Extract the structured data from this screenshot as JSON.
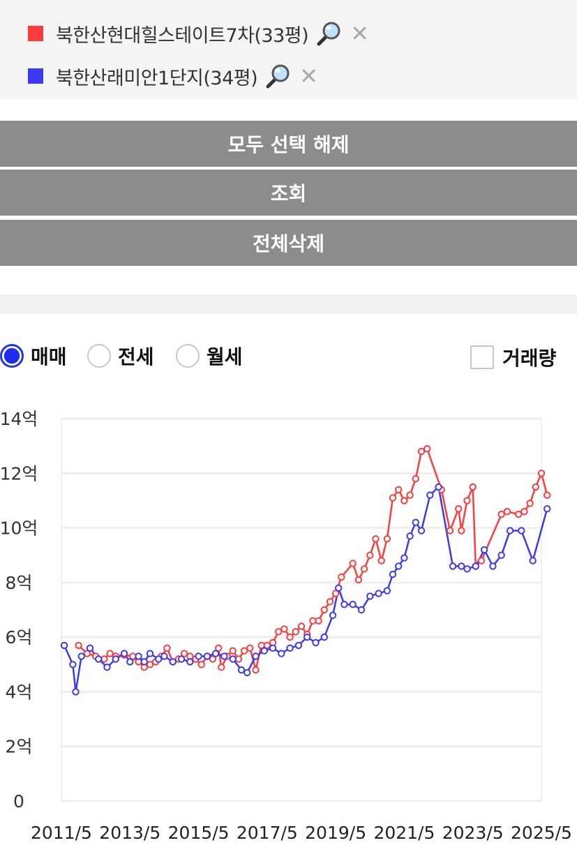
{
  "complexes": [
    {
      "name": "북한산현대힐스테이트7차(33평)",
      "color": "#ff3b3b",
      "icon": "magnifier-icon",
      "remove_icon": "close-icon"
    },
    {
      "name": "북한산래미안1단지(34평)",
      "color": "#3a3af5",
      "icon": "magnifier-icon",
      "remove_icon": "close-icon"
    }
  ],
  "buttons": {
    "deselect_all": "모두 선택 해제",
    "search": "조회",
    "delete_all": "전체삭제"
  },
  "trade_type": {
    "options": [
      "매매",
      "전세",
      "월세"
    ],
    "selected": "매매"
  },
  "volume_toggle": {
    "label": "거래량",
    "checked": false
  },
  "chart_data": {
    "type": "line",
    "x_type": "date",
    "yticks": [
      "0",
      "2억",
      "4억",
      "6억",
      "8억",
      "10억",
      "12억",
      "14억"
    ],
    "ylim": [
      0,
      14
    ],
    "y_unit": "억",
    "xticks": [
      "2011/5",
      "2013/5",
      "2015/5",
      "2017/5",
      "2019/5",
      "2021/5",
      "2023/5",
      "2025/5"
    ],
    "xlim": [
      "2011-05",
      "2025-05"
    ],
    "grid": true,
    "series": [
      {
        "name": "북한산현대힐스테이트7차(33평)",
        "color": "#ff3b3b",
        "points": [
          [
            "2011-11",
            5.7
          ],
          [
            "2012-02",
            5.4
          ],
          [
            "2012-05",
            5.3
          ],
          [
            "2012-08",
            5.2
          ],
          [
            "2012-10",
            5.4
          ],
          [
            "2012-12",
            5.3
          ],
          [
            "2013-03",
            5.35
          ],
          [
            "2013-06",
            5.3
          ],
          [
            "2013-08",
            5.1
          ],
          [
            "2013-10",
            4.9
          ],
          [
            "2013-12",
            5.0
          ],
          [
            "2014-02",
            5.1
          ],
          [
            "2014-04",
            5.3
          ],
          [
            "2014-06",
            5.6
          ],
          [
            "2014-08",
            5.1
          ],
          [
            "2014-10",
            5.2
          ],
          [
            "2014-12",
            5.4
          ],
          [
            "2015-02",
            5.3
          ],
          [
            "2015-04",
            5.2
          ],
          [
            "2015-06",
            5.0
          ],
          [
            "2015-08",
            5.3
          ],
          [
            "2015-10",
            5.2
          ],
          [
            "2015-12",
            5.6
          ],
          [
            "2016-01",
            4.9
          ],
          [
            "2016-03",
            5.3
          ],
          [
            "2016-05",
            5.5
          ],
          [
            "2016-07",
            5.2
          ],
          [
            "2016-09",
            5.5
          ],
          [
            "2016-11",
            5.6
          ],
          [
            "2017-01",
            4.8
          ],
          [
            "2017-03",
            5.7
          ],
          [
            "2017-05",
            5.7
          ],
          [
            "2017-07",
            5.8
          ],
          [
            "2017-09",
            6.2
          ],
          [
            "2017-11",
            6.3
          ],
          [
            "2018-01",
            6.0
          ],
          [
            "2018-03",
            6.2
          ],
          [
            "2018-05",
            6.4
          ],
          [
            "2018-07",
            6.1
          ],
          [
            "2018-09",
            6.6
          ],
          [
            "2018-11",
            6.6
          ],
          [
            "2019-01",
            7.0
          ],
          [
            "2019-03",
            7.3
          ],
          [
            "2019-05",
            7.6
          ],
          [
            "2019-07",
            8.2
          ],
          [
            "2019-11",
            8.7
          ],
          [
            "2020-01",
            8.1
          ],
          [
            "2020-03",
            8.5
          ],
          [
            "2020-05",
            9.0
          ],
          [
            "2020-07",
            9.6
          ],
          [
            "2020-09",
            8.8
          ],
          [
            "2020-11",
            9.6
          ],
          [
            "2021-01",
            11.1
          ],
          [
            "2021-03",
            11.4
          ],
          [
            "2021-05",
            11.0
          ],
          [
            "2021-07",
            11.2
          ],
          [
            "2021-09",
            11.8
          ],
          [
            "2021-11",
            12.8
          ],
          [
            "2022-01",
            12.9
          ],
          [
            "2022-06",
            11.4
          ],
          [
            "2022-09",
            9.9
          ],
          [
            "2022-12",
            10.7
          ],
          [
            "2023-01",
            9.9
          ],
          [
            "2023-03",
            11.0
          ],
          [
            "2023-05",
            11.5
          ],
          [
            "2023-06",
            8.6
          ],
          [
            "2023-08",
            8.8
          ],
          [
            "2024-03",
            10.5
          ],
          [
            "2024-05",
            10.6
          ],
          [
            "2024-09",
            10.5
          ],
          [
            "2024-11",
            10.6
          ],
          [
            "2025-01",
            10.9
          ],
          [
            "2025-03",
            11.5
          ],
          [
            "2025-05",
            12.0
          ],
          [
            "2025-07",
            11.2
          ]
        ]
      },
      {
        "name": "북한산래미안1단지(34평)",
        "color": "#3a3af5",
        "points": [
          [
            "2011-06",
            5.7
          ],
          [
            "2011-09",
            5.0
          ],
          [
            "2011-10",
            4.0
          ],
          [
            "2011-12",
            5.3
          ],
          [
            "2012-03",
            5.6
          ],
          [
            "2012-06",
            5.2
          ],
          [
            "2012-09",
            4.9
          ],
          [
            "2012-12",
            5.2
          ],
          [
            "2013-03",
            5.4
          ],
          [
            "2013-05",
            5.1
          ],
          [
            "2013-08",
            5.3
          ],
          [
            "2013-10",
            5.1
          ],
          [
            "2013-12",
            5.4
          ],
          [
            "2014-03",
            5.2
          ],
          [
            "2014-05",
            5.3
          ],
          [
            "2014-08",
            5.1
          ],
          [
            "2014-11",
            5.2
          ],
          [
            "2015-02",
            5.1
          ],
          [
            "2015-05",
            5.3
          ],
          [
            "2015-08",
            5.3
          ],
          [
            "2015-11",
            5.4
          ],
          [
            "2016-02",
            5.3
          ],
          [
            "2016-05",
            5.2
          ],
          [
            "2016-08",
            4.8
          ],
          [
            "2016-10",
            4.7
          ],
          [
            "2017-01",
            5.3
          ],
          [
            "2017-04",
            5.5
          ],
          [
            "2017-07",
            5.6
          ],
          [
            "2017-10",
            5.4
          ],
          [
            "2018-01",
            5.6
          ],
          [
            "2018-04",
            5.7
          ],
          [
            "2018-07",
            6.0
          ],
          [
            "2018-10",
            5.8
          ],
          [
            "2019-01",
            6.0
          ],
          [
            "2019-04",
            6.8
          ],
          [
            "2019-06",
            7.8
          ],
          [
            "2019-08",
            7.2
          ],
          [
            "2019-11",
            7.2
          ],
          [
            "2020-02",
            7.0
          ],
          [
            "2020-05",
            7.5
          ],
          [
            "2020-08",
            7.6
          ],
          [
            "2020-11",
            7.7
          ],
          [
            "2021-01",
            8.3
          ],
          [
            "2021-03",
            8.6
          ],
          [
            "2021-05",
            8.9
          ],
          [
            "2021-07",
            9.7
          ],
          [
            "2021-09",
            10.2
          ],
          [
            "2021-11",
            9.9
          ],
          [
            "2022-02",
            11.2
          ],
          [
            "2022-05",
            11.5
          ],
          [
            "2022-10",
            8.6
          ],
          [
            "2023-01",
            8.6
          ],
          [
            "2023-03",
            8.5
          ],
          [
            "2023-06",
            8.6
          ],
          [
            "2023-09",
            9.2
          ],
          [
            "2023-12",
            8.6
          ],
          [
            "2024-03",
            9.0
          ],
          [
            "2024-06",
            9.9
          ],
          [
            "2024-10",
            9.9
          ],
          [
            "2025-02",
            8.8
          ],
          [
            "2025-07",
            10.7
          ]
        ]
      }
    ]
  }
}
